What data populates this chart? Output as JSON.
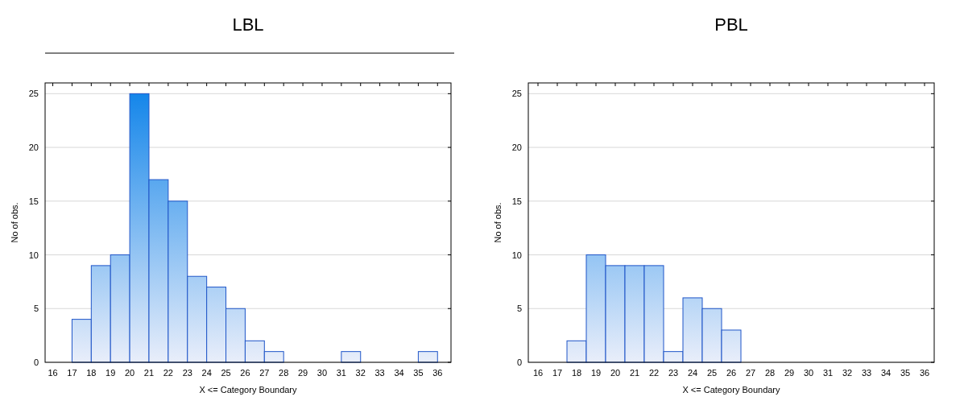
{
  "chart_data": [
    {
      "type": "histogram",
      "title": "LBL",
      "xlabel": "X <= Category Boundary",
      "ylabel": "No of obs.",
      "bins": [
        17,
        18,
        19,
        20,
        21,
        22,
        23,
        24,
        25,
        26,
        27,
        28,
        29,
        30,
        31,
        32,
        33,
        34,
        35,
        36
      ],
      "values": [
        4,
        9,
        10,
        25,
        17,
        15,
        8,
        7,
        5,
        2,
        1,
        0,
        0,
        0,
        1,
        0,
        0,
        0,
        1
      ],
      "color": "#1f55c8",
      "xlim": [
        15.6,
        36.7
      ],
      "xticks": [
        16,
        17,
        18,
        19,
        20,
        21,
        22,
        23,
        24,
        25,
        26,
        27,
        28,
        29,
        30,
        31,
        32,
        33,
        34,
        35,
        36
      ],
      "ylim": [
        0,
        26
      ],
      "yticks": [
        0,
        5,
        10,
        15,
        20,
        25
      ],
      "grid": "y"
    },
    {
      "type": "histogram",
      "title": "PBL",
      "xlabel": "X <= Category Boundary",
      "ylabel": "No of obs.",
      "bins": [
        17.5,
        18.5,
        19.5,
        20.5,
        21.5,
        22.5,
        23.5,
        24.5,
        25.5,
        26.5
      ],
      "values": [
        2,
        10,
        9,
        9,
        9,
        1,
        6,
        5,
        3
      ],
      "color": "#1f55c8",
      "xlim": [
        15.5,
        36.5
      ],
      "xticks": [
        16,
        17,
        18,
        19,
        20,
        21,
        22,
        23,
        24,
        25,
        26,
        27,
        28,
        29,
        30,
        31,
        32,
        33,
        34,
        35,
        36
      ],
      "ylim": [
        0,
        26
      ],
      "yticks": [
        0,
        5,
        10,
        15,
        20,
        25
      ],
      "grid": "y"
    }
  ]
}
